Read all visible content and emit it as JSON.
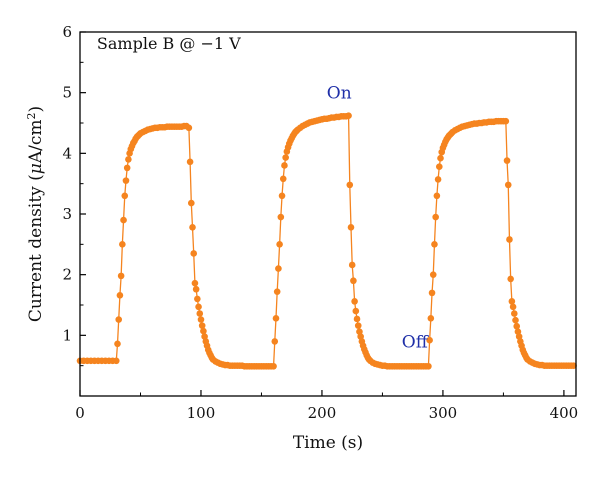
{
  "chart_data": {
    "type": "scatter",
    "xlabel": "Time (s)",
    "ylabel": "Current density (μA/cm²)",
    "ylabel_parts": {
      "pre": "Current density (",
      "mu": "μ",
      "unit": "A/cm",
      "sup": "2",
      "post": ")"
    },
    "xlim": [
      0,
      410
    ],
    "ylim": [
      0,
      6
    ],
    "x_ticks": [
      0,
      100,
      200,
      300,
      400
    ],
    "y_ticks": [
      1,
      2,
      3,
      4,
      5,
      6
    ],
    "grid": false,
    "legend": "none",
    "line_color": "#f5841f",
    "marker_color": "#f5841f",
    "annotations": [
      {
        "text": "Sample B @ −1 V",
        "x": 14,
        "y": 5.72,
        "style": "black"
      },
      {
        "text": "On",
        "x": 204,
        "y": 4.9,
        "style": "blue"
      },
      {
        "text": "Off",
        "x": 266,
        "y": 0.8,
        "style": "blue"
      }
    ],
    "series": [
      {
        "points": [
          [
            0,
            0.58
          ],
          [
            3,
            0.58
          ],
          [
            6,
            0.58
          ],
          [
            9,
            0.58
          ],
          [
            12,
            0.58
          ],
          [
            15,
            0.58
          ],
          [
            18,
            0.58
          ],
          [
            21,
            0.58
          ],
          [
            24,
            0.58
          ],
          [
            27,
            0.58
          ],
          [
            30,
            0.58
          ],
          [
            31,
            0.86
          ],
          [
            32,
            1.26
          ],
          [
            33,
            1.66
          ],
          [
            34,
            1.98
          ],
          [
            35,
            2.5
          ],
          [
            36,
            2.9
          ],
          [
            37,
            3.3
          ],
          [
            38,
            3.55
          ],
          [
            39,
            3.76
          ],
          [
            40,
            3.9
          ],
          [
            41,
            4.0
          ],
          [
            42,
            4.07
          ],
          [
            43,
            4.12
          ],
          [
            44,
            4.17
          ],
          [
            45,
            4.2
          ],
          [
            46,
            4.24
          ],
          [
            47,
            4.27
          ],
          [
            48,
            4.29
          ],
          [
            49,
            4.31
          ],
          [
            50,
            4.33
          ],
          [
            52,
            4.35
          ],
          [
            54,
            4.37
          ],
          [
            56,
            4.39
          ],
          [
            58,
            4.4
          ],
          [
            60,
            4.41
          ],
          [
            62,
            4.42
          ],
          [
            64,
            4.42
          ],
          [
            66,
            4.43
          ],
          [
            68,
            4.43
          ],
          [
            70,
            4.43
          ],
          [
            72,
            4.44
          ],
          [
            74,
            4.44
          ],
          [
            76,
            4.44
          ],
          [
            78,
            4.44
          ],
          [
            80,
            4.44
          ],
          [
            82,
            4.44
          ],
          [
            84,
            4.44
          ],
          [
            86,
            4.45
          ],
          [
            88,
            4.45
          ],
          [
            90,
            4.42
          ],
          [
            91,
            3.86
          ],
          [
            92,
            3.18
          ],
          [
            93,
            2.78
          ],
          [
            94,
            2.35
          ],
          [
            95,
            1.86
          ],
          [
            96,
            1.76
          ],
          [
            97,
            1.6
          ],
          [
            98,
            1.47
          ],
          [
            99,
            1.36
          ],
          [
            100,
            1.26
          ],
          [
            101,
            1.16
          ],
          [
            102,
            1.07
          ],
          [
            103,
            0.98
          ],
          [
            104,
            0.9
          ],
          [
            105,
            0.83
          ],
          [
            106,
            0.76
          ],
          [
            107,
            0.71
          ],
          [
            108,
            0.67
          ],
          [
            109,
            0.63
          ],
          [
            110,
            0.6
          ],
          [
            112,
            0.57
          ],
          [
            114,
            0.55
          ],
          [
            116,
            0.53
          ],
          [
            118,
            0.52
          ],
          [
            120,
            0.51
          ],
          [
            122,
            0.51
          ],
          [
            124,
            0.5
          ],
          [
            126,
            0.5
          ],
          [
            128,
            0.5
          ],
          [
            130,
            0.5
          ],
          [
            132,
            0.5
          ],
          [
            134,
            0.5
          ],
          [
            136,
            0.49
          ],
          [
            138,
            0.49
          ],
          [
            140,
            0.49
          ],
          [
            142,
            0.49
          ],
          [
            144,
            0.49
          ],
          [
            146,
            0.49
          ],
          [
            148,
            0.49
          ],
          [
            150,
            0.49
          ],
          [
            152,
            0.49
          ],
          [
            154,
            0.49
          ],
          [
            156,
            0.49
          ],
          [
            158,
            0.49
          ],
          [
            160,
            0.49
          ],
          [
            161,
            0.9
          ],
          [
            162,
            1.28
          ],
          [
            163,
            1.72
          ],
          [
            164,
            2.1
          ],
          [
            165,
            2.5
          ],
          [
            166,
            2.95
          ],
          [
            167,
            3.3
          ],
          [
            168,
            3.58
          ],
          [
            169,
            3.8
          ],
          [
            170,
            3.93
          ],
          [
            171,
            4.03
          ],
          [
            172,
            4.1
          ],
          [
            173,
            4.16
          ],
          [
            174,
            4.21
          ],
          [
            175,
            4.25
          ],
          [
            176,
            4.29
          ],
          [
            177,
            4.32
          ],
          [
            178,
            4.35
          ],
          [
            179,
            4.37
          ],
          [
            180,
            4.39
          ],
          [
            182,
            4.42
          ],
          [
            184,
            4.45
          ],
          [
            186,
            4.47
          ],
          [
            188,
            4.49
          ],
          [
            190,
            4.51
          ],
          [
            192,
            4.52
          ],
          [
            194,
            4.53
          ],
          [
            196,
            4.54
          ],
          [
            198,
            4.55
          ],
          [
            200,
            4.56
          ],
          [
            202,
            4.57
          ],
          [
            204,
            4.57
          ],
          [
            206,
            4.58
          ],
          [
            208,
            4.59
          ],
          [
            210,
            4.59
          ],
          [
            212,
            4.6
          ],
          [
            214,
            4.6
          ],
          [
            216,
            4.61
          ],
          [
            218,
            4.61
          ],
          [
            220,
            4.61
          ],
          [
            222,
            4.62
          ],
          [
            223,
            3.48
          ],
          [
            224,
            2.78
          ],
          [
            225,
            2.16
          ],
          [
            226,
            1.9
          ],
          [
            227,
            1.56
          ],
          [
            228,
            1.4
          ],
          [
            229,
            1.27
          ],
          [
            230,
            1.16
          ],
          [
            231,
            1.06
          ],
          [
            232,
            0.98
          ],
          [
            233,
            0.9
          ],
          [
            234,
            0.83
          ],
          [
            235,
            0.77
          ],
          [
            236,
            0.72
          ],
          [
            237,
            0.67
          ],
          [
            238,
            0.63
          ],
          [
            239,
            0.6
          ],
          [
            240,
            0.58
          ],
          [
            242,
            0.55
          ],
          [
            244,
            0.53
          ],
          [
            246,
            0.52
          ],
          [
            248,
            0.51
          ],
          [
            250,
            0.5
          ],
          [
            252,
            0.5
          ],
          [
            254,
            0.49
          ],
          [
            256,
            0.49
          ],
          [
            258,
            0.49
          ],
          [
            260,
            0.49
          ],
          [
            262,
            0.49
          ],
          [
            264,
            0.49
          ],
          [
            266,
            0.49
          ],
          [
            268,
            0.49
          ],
          [
            270,
            0.49
          ],
          [
            272,
            0.49
          ],
          [
            274,
            0.49
          ],
          [
            276,
            0.49
          ],
          [
            278,
            0.49
          ],
          [
            280,
            0.49
          ],
          [
            282,
            0.49
          ],
          [
            284,
            0.49
          ],
          [
            286,
            0.49
          ],
          [
            288,
            0.49
          ],
          [
            289,
            0.92
          ],
          [
            290,
            1.28
          ],
          [
            291,
            1.7
          ],
          [
            292,
            2.0
          ],
          [
            293,
            2.5
          ],
          [
            294,
            2.95
          ],
          [
            295,
            3.3
          ],
          [
            296,
            3.57
          ],
          [
            297,
            3.78
          ],
          [
            298,
            3.92
          ],
          [
            299,
            4.02
          ],
          [
            300,
            4.09
          ],
          [
            301,
            4.14
          ],
          [
            302,
            4.19
          ],
          [
            303,
            4.23
          ],
          [
            304,
            4.26
          ],
          [
            305,
            4.29
          ],
          [
            306,
            4.31
          ],
          [
            307,
            4.33
          ],
          [
            308,
            4.35
          ],
          [
            310,
            4.38
          ],
          [
            312,
            4.4
          ],
          [
            314,
            4.42
          ],
          [
            316,
            4.44
          ],
          [
            318,
            4.45
          ],
          [
            320,
            4.46
          ],
          [
            322,
            4.47
          ],
          [
            324,
            4.48
          ],
          [
            326,
            4.49
          ],
          [
            328,
            4.49
          ],
          [
            330,
            4.5
          ],
          [
            332,
            4.5
          ],
          [
            334,
            4.51
          ],
          [
            336,
            4.51
          ],
          [
            338,
            4.52
          ],
          [
            340,
            4.52
          ],
          [
            342,
            4.52
          ],
          [
            344,
            4.53
          ],
          [
            346,
            4.53
          ],
          [
            348,
            4.53
          ],
          [
            350,
            4.53
          ],
          [
            352,
            4.53
          ],
          [
            353,
            3.88
          ],
          [
            354,
            3.48
          ],
          [
            355,
            2.58
          ],
          [
            356,
            1.93
          ],
          [
            357,
            1.56
          ],
          [
            358,
            1.47
          ],
          [
            359,
            1.36
          ],
          [
            360,
            1.25
          ],
          [
            361,
            1.15
          ],
          [
            362,
            1.06
          ],
          [
            363,
            0.98
          ],
          [
            364,
            0.9
          ],
          [
            365,
            0.83
          ],
          [
            366,
            0.76
          ],
          [
            367,
            0.71
          ],
          [
            368,
            0.67
          ],
          [
            369,
            0.63
          ],
          [
            370,
            0.6
          ],
          [
            372,
            0.57
          ],
          [
            374,
            0.55
          ],
          [
            376,
            0.53
          ],
          [
            378,
            0.52
          ],
          [
            380,
            0.51
          ],
          [
            382,
            0.51
          ],
          [
            384,
            0.5
          ],
          [
            386,
            0.5
          ],
          [
            388,
            0.5
          ],
          [
            390,
            0.5
          ],
          [
            392,
            0.5
          ],
          [
            394,
            0.5
          ],
          [
            396,
            0.5
          ],
          [
            398,
            0.5
          ],
          [
            400,
            0.5
          ],
          [
            402,
            0.5
          ],
          [
            404,
            0.5
          ],
          [
            406,
            0.5
          ],
          [
            408,
            0.5
          ]
        ]
      }
    ]
  }
}
